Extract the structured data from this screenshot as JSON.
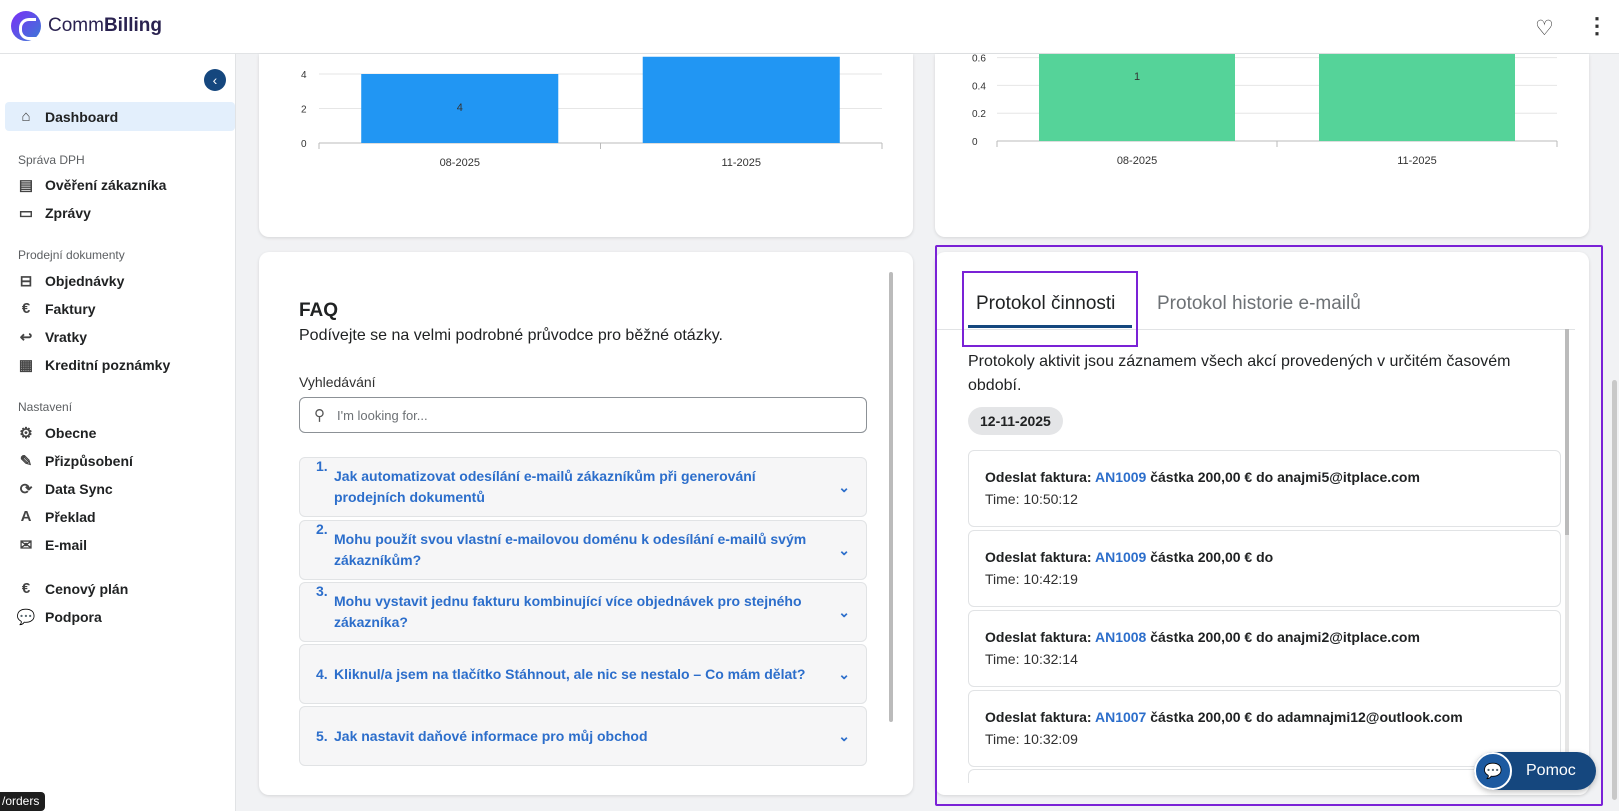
{
  "app": {
    "brand_light": "Comm",
    "brand_bold": "Billing"
  },
  "header": {
    "favorite_icon": "heart-icon",
    "menu_icon": "kebab-icon"
  },
  "sidebar": {
    "dashboard": "Dashboard",
    "section_vat": "Správa DPH",
    "verify_customer": "Ověření zákazníka",
    "messages": "Zprávy",
    "section_sales": "Prodejní dokumenty",
    "orders": "Objednávky",
    "invoices": "Faktury",
    "returns": "Vratky",
    "credit_notes": "Kreditní poznámky",
    "section_settings": "Nastavení",
    "general": "Obecne",
    "customization": "Přizpůsobení",
    "data_sync": "Data Sync",
    "translation": "Překlad",
    "email": "E-mail",
    "pricing": "Cenový plán",
    "support": "Podpora",
    "tooltip": "/orders"
  },
  "chart_data": [
    {
      "type": "bar",
      "categories": [
        "08-2025",
        "11-2025"
      ],
      "values": [
        4,
        5
      ],
      "data_labels": [
        "4",
        ""
      ],
      "yticks": [
        "0",
        "2",
        "4"
      ],
      "color": "#2196f3"
    },
    {
      "type": "bar",
      "categories": [
        "08-2025",
        "11-2025"
      ],
      "values": [
        1,
        1
      ],
      "data_labels": [
        "1",
        ""
      ],
      "yticks": [
        "0",
        "0.2",
        "0.4",
        "0.6"
      ],
      "color": "#55d399"
    }
  ],
  "faq": {
    "title": "FAQ",
    "subtitle": "Podívejte se na velmi podrobné průvodce pro běžné otázky.",
    "search_label": "Vyhledávání",
    "search_placeholder": "I'm looking for...",
    "items": [
      {
        "num": "1.",
        "q": "Jak automatizovat odesílání e-mailů zákazníkům při generování prodejních dokumentů"
      },
      {
        "num": "2.",
        "q": "Mohu použít svou vlastní e-mailovou doménu k odesílání e-mailů svým zákazníkům?"
      },
      {
        "num": "3.",
        "q": "Mohu vystavit jednu fakturu kombinující více objednávek pro stejného zákazníka?"
      },
      {
        "num": "4.",
        "q": "Kliknul/a jsem na tlačítko Stáhnout, ale nic se nestalo – Co mám dělat?"
      },
      {
        "num": "5.",
        "q": "Jak nastavit daňové informace pro můj obchod"
      }
    ]
  },
  "activity": {
    "tab_active": "Protokol činnosti",
    "tab_other": "Protokol historie e-mailů",
    "description": "Protokoly aktivit jsou záznamem všech akcí provedených v určitém časovém období.",
    "date": "12-11-2025",
    "entries": [
      {
        "prefix": "Odeslat faktura:",
        "invoice": "AN1009",
        "rest": "částka 200,00 € do anajmi5@itplace.com",
        "time": "Time: 10:50:12"
      },
      {
        "prefix": "Odeslat faktura:",
        "invoice": "AN1009",
        "rest": "částka 200,00 € do",
        "time": "Time: 10:42:19"
      },
      {
        "prefix": "Odeslat faktura:",
        "invoice": "AN1008",
        "rest": "částka 200,00 € do anajmi2@itplace.com",
        "time": "Time: 10:32:14"
      },
      {
        "prefix": "Odeslat faktura:",
        "invoice": "AN1007",
        "rest": "částka 200,00 € do adamnajmi12@outlook.com",
        "time": "Time: 10:32:09"
      }
    ]
  },
  "help": {
    "label": "Pomoc"
  }
}
